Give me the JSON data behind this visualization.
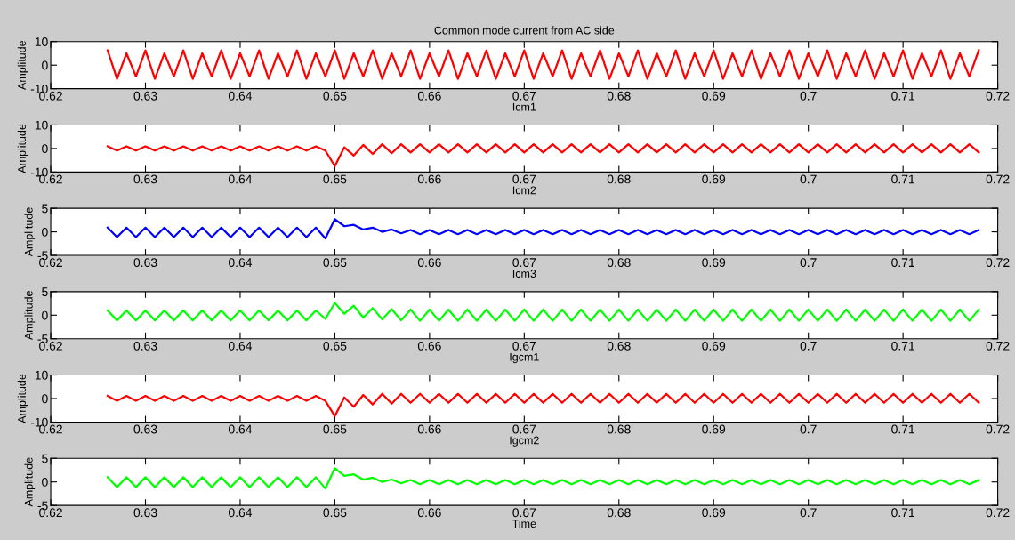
{
  "chart_data": [
    {
      "type": "line",
      "title": "Common mode current from AC side",
      "xlabel": "Icm1",
      "ylabel": "Amplitude",
      "xlim": [
        0.62,
        0.72
      ],
      "xticks": [
        0.62,
        0.63,
        0.64,
        0.65,
        0.66,
        0.67,
        0.68,
        0.69,
        0.7,
        0.71,
        0.72
      ],
      "ylim": [
        -10,
        10
      ],
      "yticks": [
        -10,
        0,
        10
      ],
      "x": [
        0.626,
        0.627,
        0.628,
        0.629,
        0.63,
        0.631,
        0.632,
        0.633,
        0.634,
        0.635,
        0.636,
        0.637,
        0.638,
        0.639,
        0.64,
        0.641,
        0.642,
        0.643,
        0.644,
        0.645,
        0.646,
        0.647,
        0.648,
        0.649,
        0.65,
        0.651,
        0.652,
        0.653,
        0.654,
        0.655,
        0.656,
        0.657,
        0.658,
        0.659,
        0.66,
        0.661,
        0.662,
        0.663,
        0.664,
        0.665,
        0.666,
        0.667,
        0.668,
        0.669,
        0.67,
        0.671,
        0.672,
        0.673,
        0.674,
        0.675,
        0.676,
        0.677,
        0.678,
        0.679,
        0.68,
        0.681,
        0.682,
        0.683,
        0.684,
        0.685,
        0.686,
        0.687,
        0.688,
        0.689,
        0.69,
        0.691,
        0.692,
        0.693,
        0.694,
        0.695,
        0.696,
        0.697,
        0.698,
        0.699,
        0.7,
        0.701,
        0.702,
        0.703,
        0.704,
        0.705,
        0.706,
        0.707,
        0.708,
        0.709,
        0.71,
        0.711,
        0.712,
        0.713,
        0.714,
        0.715,
        0.716,
        0.717,
        0.718
      ],
      "series": [
        {
          "color": "#ff0000",
          "values": [
            6.3,
            -5.8,
            5.0,
            -4.8,
            6.3,
            -5.8,
            5.0,
            -4.8,
            6.3,
            -5.8,
            5.0,
            -4.8,
            6.3,
            -5.8,
            5.0,
            -4.8,
            6.3,
            -5.8,
            5.0,
            -4.8,
            6.3,
            -5.8,
            5.0,
            -4.8,
            6.3,
            -5.8,
            5.0,
            -4.8,
            6.3,
            -5.8,
            5.0,
            -4.8,
            6.3,
            -5.8,
            5.0,
            -4.8,
            6.3,
            -5.8,
            5.0,
            -4.8,
            6.3,
            -5.8,
            5.0,
            -4.8,
            6.3,
            -5.8,
            5.0,
            -4.8,
            6.3,
            -5.8,
            5.0,
            -4.8,
            6.3,
            -5.8,
            5.0,
            -4.8,
            6.3,
            -5.8,
            5.0,
            -4.8,
            6.3,
            -5.8,
            5.0,
            -4.8,
            6.3,
            -5.8,
            5.0,
            -4.8,
            6.3,
            -5.8,
            5.0,
            -4.8,
            6.3,
            -5.8,
            5.0,
            -4.8,
            6.3,
            -5.8,
            5.0,
            -4.8,
            6.3,
            -5.8,
            5.0,
            -4.8,
            6.3,
            -5.8,
            5.0,
            -4.8,
            6.3,
            -5.8,
            5.0,
            -4.8,
            6.3
          ]
        }
      ]
    },
    {
      "type": "line",
      "xlabel": "Icm2",
      "ylabel": "Amplitude",
      "xlim": [
        0.62,
        0.72
      ],
      "xticks": [
        0.62,
        0.63,
        0.64,
        0.65,
        0.66,
        0.67,
        0.68,
        0.69,
        0.7,
        0.71,
        0.72
      ],
      "ylim": [
        -10,
        10
      ],
      "yticks": [
        -10,
        0,
        10
      ],
      "x": [
        0.626,
        0.627,
        0.628,
        0.629,
        0.63,
        0.631,
        0.632,
        0.633,
        0.634,
        0.635,
        0.636,
        0.637,
        0.638,
        0.639,
        0.64,
        0.641,
        0.642,
        0.643,
        0.644,
        0.645,
        0.646,
        0.647,
        0.648,
        0.649,
        0.65,
        0.651,
        0.652,
        0.653,
        0.654,
        0.655,
        0.656,
        0.657,
        0.658,
        0.659,
        0.66,
        0.661,
        0.662,
        0.663,
        0.664,
        0.665,
        0.666,
        0.667,
        0.668,
        0.669,
        0.67,
        0.671,
        0.672,
        0.673,
        0.674,
        0.675,
        0.676,
        0.677,
        0.678,
        0.679,
        0.68,
        0.681,
        0.682,
        0.683,
        0.684,
        0.685,
        0.686,
        0.687,
        0.688,
        0.689,
        0.69,
        0.691,
        0.692,
        0.693,
        0.694,
        0.695,
        0.696,
        0.697,
        0.698,
        0.699,
        0.7,
        0.701,
        0.702,
        0.703,
        0.704,
        0.705,
        0.706,
        0.707,
        0.708,
        0.709,
        0.71,
        0.711,
        0.712,
        0.713,
        0.714,
        0.715,
        0.716,
        0.717,
        0.718
      ],
      "series": [
        {
          "color": "#ff0000",
          "values": [
            0.9,
            -0.9,
            0.9,
            -0.9,
            0.9,
            -0.9,
            0.9,
            -0.9,
            0.9,
            -0.9,
            0.9,
            -0.9,
            0.9,
            -0.9,
            0.9,
            -0.9,
            0.9,
            -0.9,
            0.9,
            -0.9,
            0.9,
            -0.9,
            0.9,
            -0.9,
            -7.5,
            0.5,
            -3,
            1.5,
            -2.3,
            1.8,
            -2,
            1.8,
            -1.7,
            1.8,
            -1.7,
            1.8,
            -1.7,
            1.8,
            -1.7,
            1.8,
            -1.7,
            1.8,
            -1.7,
            1.8,
            -1.7,
            1.8,
            -1.7,
            1.8,
            -1.7,
            1.8,
            -1.7,
            1.8,
            -1.7,
            1.8,
            -1.7,
            1.8,
            -1.7,
            1.8,
            -1.7,
            1.8,
            -1.7,
            1.8,
            -1.7,
            1.8,
            -1.7,
            1.8,
            -1.7,
            1.8,
            -1.7,
            1.8,
            -1.7,
            1.8,
            -1.7,
            1.8,
            -1.7,
            1.8,
            -1.7,
            1.8,
            -1.7,
            1.8,
            -1.7,
            1.8,
            -1.7,
            1.8,
            -1.7,
            1.8,
            -1.7,
            1.8,
            -1.7,
            1.8,
            -1.7,
            1.8,
            -1.7
          ]
        }
      ]
    },
    {
      "type": "line",
      "xlabel": "Icm3",
      "ylabel": "Amplitude",
      "xlim": [
        0.62,
        0.72
      ],
      "xticks": [
        0.62,
        0.63,
        0.64,
        0.65,
        0.66,
        0.67,
        0.68,
        0.69,
        0.7,
        0.71,
        0.72
      ],
      "ylim": [
        -5,
        5
      ],
      "yticks": [
        -5,
        0,
        5
      ],
      "x": [
        0.626,
        0.627,
        0.628,
        0.629,
        0.63,
        0.631,
        0.632,
        0.633,
        0.634,
        0.635,
        0.636,
        0.637,
        0.638,
        0.639,
        0.64,
        0.641,
        0.642,
        0.643,
        0.644,
        0.645,
        0.646,
        0.647,
        0.648,
        0.649,
        0.65,
        0.651,
        0.652,
        0.653,
        0.654,
        0.655,
        0.656,
        0.657,
        0.658,
        0.659,
        0.66,
        0.661,
        0.662,
        0.663,
        0.664,
        0.665,
        0.666,
        0.667,
        0.668,
        0.669,
        0.67,
        0.671,
        0.672,
        0.673,
        0.674,
        0.675,
        0.676,
        0.677,
        0.678,
        0.679,
        0.68,
        0.681,
        0.682,
        0.683,
        0.684,
        0.685,
        0.686,
        0.687,
        0.688,
        0.689,
        0.69,
        0.691,
        0.692,
        0.693,
        0.694,
        0.695,
        0.696,
        0.697,
        0.698,
        0.699,
        0.7,
        0.701,
        0.702,
        0.703,
        0.704,
        0.705,
        0.706,
        0.707,
        0.708,
        0.709,
        0.71,
        0.711,
        0.712,
        0.713,
        0.714,
        0.715,
        0.716,
        0.717,
        0.718
      ],
      "series": [
        {
          "color": "#0000ff",
          "values": [
            0.9,
            -1.1,
            0.9,
            -1.1,
            0.9,
            -1.1,
            0.9,
            -1.1,
            0.9,
            -1.1,
            0.9,
            -1.1,
            0.9,
            -1.1,
            0.9,
            -1.1,
            0.9,
            -1.1,
            0.9,
            -1.1,
            0.9,
            -1.1,
            0.9,
            -1.4,
            2.7,
            1.2,
            1.5,
            0.5,
            0.9,
            0,
            0.5,
            -0.3,
            0.4,
            -0.5,
            0.4,
            -0.5,
            0.4,
            -0.5,
            0.4,
            -0.5,
            0.4,
            -0.5,
            0.4,
            -0.5,
            0.4,
            -0.5,
            0.4,
            -0.5,
            0.4,
            -0.5,
            0.4,
            -0.5,
            0.4,
            -0.5,
            0.4,
            -0.5,
            0.4,
            -0.5,
            0.4,
            -0.5,
            0.4,
            -0.5,
            0.4,
            -0.5,
            0.4,
            -0.5,
            0.4,
            -0.5,
            0.4,
            -0.5,
            0.4,
            -0.5,
            0.4,
            -0.5,
            0.4,
            -0.5,
            0.4,
            -0.5,
            0.4,
            -0.5,
            0.4,
            -0.5,
            0.4,
            -0.5,
            0.4,
            -0.5,
            0.4,
            -0.5,
            0.4,
            -0.5,
            0.4,
            -0.5,
            0.4
          ]
        }
      ]
    },
    {
      "type": "line",
      "xlabel": "Igcm1",
      "ylabel": "Amplitude",
      "xlim": [
        0.62,
        0.72
      ],
      "xticks": [
        0.62,
        0.63,
        0.64,
        0.65,
        0.66,
        0.67,
        0.68,
        0.69,
        0.7,
        0.71,
        0.72
      ],
      "ylim": [
        -5,
        5
      ],
      "yticks": [
        -5,
        0,
        5
      ],
      "x": [
        0.626,
        0.627,
        0.628,
        0.629,
        0.63,
        0.631,
        0.632,
        0.633,
        0.634,
        0.635,
        0.636,
        0.637,
        0.638,
        0.639,
        0.64,
        0.641,
        0.642,
        0.643,
        0.644,
        0.645,
        0.646,
        0.647,
        0.648,
        0.649,
        0.65,
        0.651,
        0.652,
        0.653,
        0.654,
        0.655,
        0.656,
        0.657,
        0.658,
        0.659,
        0.66,
        0.661,
        0.662,
        0.663,
        0.664,
        0.665,
        0.666,
        0.667,
        0.668,
        0.669,
        0.67,
        0.671,
        0.672,
        0.673,
        0.674,
        0.675,
        0.676,
        0.677,
        0.678,
        0.679,
        0.68,
        0.681,
        0.682,
        0.683,
        0.684,
        0.685,
        0.686,
        0.687,
        0.688,
        0.689,
        0.69,
        0.691,
        0.692,
        0.693,
        0.694,
        0.695,
        0.696,
        0.697,
        0.698,
        0.699,
        0.7,
        0.701,
        0.702,
        0.703,
        0.704,
        0.705,
        0.706,
        0.707,
        0.708,
        0.709,
        0.71,
        0.711,
        0.712,
        0.713,
        0.714,
        0.715,
        0.716,
        0.717,
        0.718
      ],
      "series": [
        {
          "color": "#00ff00",
          "values": [
            1.0,
            -1.1,
            1.0,
            -1.1,
            1.0,
            -1.1,
            1.0,
            -1.1,
            1.0,
            -1.1,
            1.0,
            -1.1,
            1.0,
            -1.1,
            1.0,
            -1.1,
            1.0,
            -1.1,
            1.0,
            -1.1,
            1.0,
            -1.1,
            1.0,
            -0.8,
            2.6,
            0.3,
            2.0,
            -0.5,
            1.5,
            -0.9,
            1.3,
            -1.1,
            1.2,
            -1.2,
            1.2,
            -1.2,
            1.2,
            -1.2,
            1.2,
            -1.2,
            1.2,
            -1.2,
            1.2,
            -1.2,
            1.2,
            -1.2,
            1.2,
            -1.2,
            1.2,
            -1.2,
            1.2,
            -1.2,
            1.2,
            -1.2,
            1.2,
            -1.2,
            1.2,
            -1.2,
            1.2,
            -1.2,
            1.2,
            -1.2,
            1.2,
            -1.2,
            1.2,
            -1.2,
            1.2,
            -1.2,
            1.2,
            -1.2,
            1.2,
            -1.2,
            1.2,
            -1.2,
            1.2,
            -1.2,
            1.2,
            -1.2,
            1.2,
            -1.2,
            1.2,
            -1.2,
            1.2,
            -1.2,
            1.2,
            -1.2,
            1.2,
            -1.2,
            1.2,
            -1.2,
            1.2,
            -1.2,
            1.2
          ]
        }
      ]
    },
    {
      "type": "line",
      "xlabel": "Igcm2",
      "ylabel": "Amplitude",
      "xlim": [
        0.62,
        0.72
      ],
      "xticks": [
        0.62,
        0.63,
        0.64,
        0.65,
        0.66,
        0.67,
        0.68,
        0.69,
        0.7,
        0.71,
        0.72
      ],
      "ylim": [
        -10,
        10
      ],
      "yticks": [
        -10,
        0,
        10
      ],
      "x": [
        0.626,
        0.627,
        0.628,
        0.629,
        0.63,
        0.631,
        0.632,
        0.633,
        0.634,
        0.635,
        0.636,
        0.637,
        0.638,
        0.639,
        0.64,
        0.641,
        0.642,
        0.643,
        0.644,
        0.645,
        0.646,
        0.647,
        0.648,
        0.649,
        0.65,
        0.651,
        0.652,
        0.653,
        0.654,
        0.655,
        0.656,
        0.657,
        0.658,
        0.659,
        0.66,
        0.661,
        0.662,
        0.663,
        0.664,
        0.665,
        0.666,
        0.667,
        0.668,
        0.669,
        0.67,
        0.671,
        0.672,
        0.673,
        0.674,
        0.675,
        0.676,
        0.677,
        0.678,
        0.679,
        0.68,
        0.681,
        0.682,
        0.683,
        0.684,
        0.685,
        0.686,
        0.687,
        0.688,
        0.689,
        0.69,
        0.691,
        0.692,
        0.693,
        0.694,
        0.695,
        0.696,
        0.697,
        0.698,
        0.699,
        0.7,
        0.701,
        0.702,
        0.703,
        0.704,
        0.705,
        0.706,
        0.707,
        0.708,
        0.709,
        0.71,
        0.711,
        0.712,
        0.713,
        0.714,
        0.715,
        0.716,
        0.717,
        0.718
      ],
      "series": [
        {
          "color": "#ff0000",
          "values": [
            1.1,
            -1.0,
            1.1,
            -1.0,
            1.1,
            -1.0,
            1.1,
            -1.0,
            1.1,
            -1.0,
            1.1,
            -1.0,
            1.1,
            -1.0,
            1.1,
            -1.0,
            1.1,
            -1.0,
            1.1,
            -1.0,
            1.1,
            -1.0,
            1.1,
            -1.0,
            -7.5,
            0.5,
            -3.5,
            1.5,
            -2.5,
            2.0,
            -2.2,
            2.0,
            -1.8,
            2.0,
            -1.8,
            2.0,
            -1.8,
            2.0,
            -1.8,
            2.0,
            -1.8,
            2.0,
            -1.8,
            2.0,
            -1.8,
            2.0,
            -1.8,
            2.0,
            -1.8,
            2.0,
            -1.8,
            2.0,
            -1.8,
            2.0,
            -1.8,
            2.0,
            -1.8,
            2.0,
            -1.8,
            2.0,
            -1.8,
            2.0,
            -1.8,
            2.0,
            -1.8,
            2.0,
            -1.8,
            2.0,
            -1.8,
            2.0,
            -1.8,
            2.0,
            -1.8,
            2.0,
            -1.8,
            2.0,
            -1.8,
            2.0,
            -1.8,
            2.0,
            -1.8,
            2.0,
            -1.8,
            2.0,
            -1.8,
            2.0,
            -1.8,
            2.0,
            -1.8,
            2.0,
            -1.8,
            2.0,
            -1.8
          ]
        }
      ]
    },
    {
      "type": "line",
      "xlabel": "Time",
      "ylabel": "Amplitude",
      "xlim": [
        0.62,
        0.72
      ],
      "xticks": [
        0.62,
        0.63,
        0.64,
        0.65,
        0.66,
        0.67,
        0.68,
        0.69,
        0.7,
        0.71,
        0.72
      ],
      "ylim": [
        -5,
        5
      ],
      "yticks": [
        -5,
        0,
        5
      ],
      "x": [
        0.626,
        0.627,
        0.628,
        0.629,
        0.63,
        0.631,
        0.632,
        0.633,
        0.634,
        0.635,
        0.636,
        0.637,
        0.638,
        0.639,
        0.64,
        0.641,
        0.642,
        0.643,
        0.644,
        0.645,
        0.646,
        0.647,
        0.648,
        0.649,
        0.65,
        0.651,
        0.652,
        0.653,
        0.654,
        0.655,
        0.656,
        0.657,
        0.658,
        0.659,
        0.66,
        0.661,
        0.662,
        0.663,
        0.664,
        0.665,
        0.666,
        0.667,
        0.668,
        0.669,
        0.67,
        0.671,
        0.672,
        0.673,
        0.674,
        0.675,
        0.676,
        0.677,
        0.678,
        0.679,
        0.68,
        0.681,
        0.682,
        0.683,
        0.684,
        0.685,
        0.686,
        0.687,
        0.688,
        0.689,
        0.69,
        0.691,
        0.692,
        0.693,
        0.694,
        0.695,
        0.696,
        0.697,
        0.698,
        0.699,
        0.7,
        0.701,
        0.702,
        0.703,
        0.704,
        0.705,
        0.706,
        0.707,
        0.708,
        0.709,
        0.71,
        0.711,
        0.712,
        0.713,
        0.714,
        0.715,
        0.716,
        0.717,
        0.718
      ],
      "series": [
        {
          "color": "#00ff00",
          "values": [
            1.0,
            -1.1,
            1.0,
            -1.1,
            1.0,
            -1.1,
            1.0,
            -1.1,
            1.0,
            -1.1,
            1.0,
            -1.1,
            1.0,
            -1.1,
            1.0,
            -1.1,
            1.0,
            -1.1,
            1.0,
            -1.1,
            1.0,
            -1.1,
            1.0,
            -1.4,
            2.9,
            1.3,
            1.6,
            0.5,
            0.9,
            0,
            0.5,
            -0.3,
            0.4,
            -0.5,
            0.4,
            -0.5,
            0.4,
            -0.5,
            0.4,
            -0.5,
            0.4,
            -0.5,
            0.4,
            -0.5,
            0.4,
            -0.5,
            0.4,
            -0.5,
            0.4,
            -0.5,
            0.4,
            -0.5,
            0.4,
            -0.5,
            0.4,
            -0.5,
            0.4,
            -0.5,
            0.4,
            -0.5,
            0.4,
            -0.5,
            0.4,
            -0.5,
            0.4,
            -0.5,
            0.4,
            -0.5,
            0.4,
            -0.5,
            0.4,
            -0.5,
            0.4,
            -0.5,
            0.4,
            -0.5,
            0.4,
            -0.5,
            0.4,
            -0.5,
            0.4,
            -0.5,
            0.4,
            -0.5,
            0.4,
            -0.5,
            0.4,
            -0.5,
            0.4,
            -0.5,
            0.4,
            -0.5,
            0.4
          ]
        }
      ]
    }
  ]
}
